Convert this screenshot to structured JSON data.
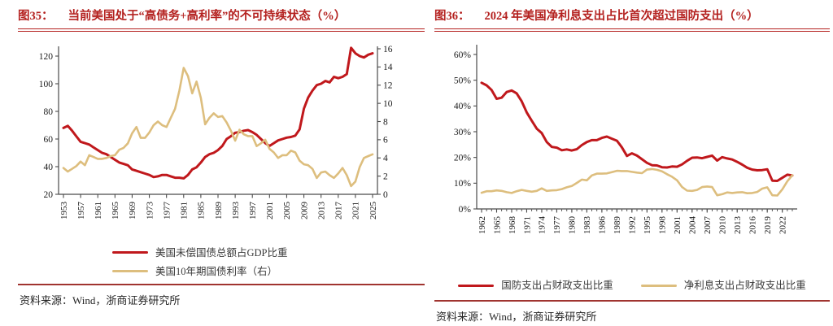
{
  "figures": [
    {
      "title_prefix": "图35：",
      "title": "当前美国处于“高债务+高利率”的不可持续状态（%）",
      "source": "资料来源：Wind，浙商证券研究所",
      "chart_data": {
        "type": "line",
        "x": [
          1953,
          1954,
          1955,
          1956,
          1957,
          1958,
          1959,
          1960,
          1961,
          1962,
          1963,
          1964,
          1965,
          1966,
          1967,
          1968,
          1969,
          1970,
          1971,
          1972,
          1973,
          1974,
          1975,
          1976,
          1977,
          1978,
          1979,
          1980,
          1981,
          1982,
          1983,
          1984,
          1985,
          1986,
          1987,
          1988,
          1989,
          1990,
          1991,
          1992,
          1993,
          1994,
          1995,
          1996,
          1997,
          1998,
          1999,
          2000,
          2001,
          2002,
          2003,
          2004,
          2005,
          2006,
          2007,
          2008,
          2009,
          2010,
          2011,
          2012,
          2013,
          2014,
          2015,
          2016,
          2017,
          2018,
          2019,
          2020,
          2021,
          2022,
          2023,
          2024,
          2025
        ],
        "series": [
          {
            "name": "美国未偿国债总额占GDP比重",
            "axis": "left",
            "color": "#c0181c",
            "values": [
              68,
              69.5,
              66,
              62,
              58,
              57,
              56,
              54,
              52,
              50,
              49,
              47,
              45,
              43,
              42,
              41,
              38,
              37,
              36,
              35,
              34,
              32.5,
              33,
              34,
              34,
              33,
              32,
              32,
              31.5,
              34,
              38,
              39.5,
              43,
              47,
              49,
              50,
              52,
              55,
              60,
              62,
              64.5,
              65,
              66,
              66.5,
              65,
              63,
              60,
              57,
              55,
              57,
              59,
              60,
              61,
              61.5,
              62.5,
              67,
              82,
              90,
              95,
              99,
              100,
              102,
              101,
              105,
              104,
              105,
              107,
              126,
              122,
              120,
              119,
              121,
              122
            ]
          },
          {
            "name": "美国10年期国债利率（右）",
            "axis": "right",
            "color": "#ddbe7e",
            "values": [
              2.9,
              2.5,
              2.8,
              3.1,
              3.6,
              3.2,
              4.3,
              4.1,
              3.9,
              3.9,
              4.0,
              4.2,
              4.3,
              4.9,
              5.1,
              5.6,
              6.7,
              7.4,
              6.2,
              6.2,
              6.8,
              7.6,
              8.0,
              7.6,
              7.4,
              8.4,
              9.4,
              11.4,
              13.9,
              13.0,
              11.1,
              12.4,
              10.6,
              7.7,
              8.4,
              8.9,
              8.5,
              8.6,
              7.9,
              7.0,
              5.9,
              7.1,
              6.6,
              6.4,
              6.4,
              5.3,
              5.6,
              6.0,
              5.0,
              4.6,
              4.0,
              4.3,
              4.3,
              4.8,
              4.6,
              3.7,
              3.3,
              3.2,
              2.8,
              1.8,
              2.4,
              2.5,
              2.1,
              1.8,
              2.3,
              2.9,
              2.1,
              0.9,
              1.4,
              3.0,
              4.0,
              4.2,
              4.4
            ]
          }
        ],
        "left_axis": {
          "min": 20,
          "max": 120,
          "ticks": [
            20,
            40,
            60,
            80,
            100,
            120
          ],
          "tick_labels": [
            "20",
            "40",
            "60",
            "80",
            "100",
            "120"
          ]
        },
        "right_axis": {
          "min": 0,
          "max": 16,
          "ticks": [
            0,
            2,
            4,
            6,
            8,
            10,
            12,
            14,
            16
          ],
          "tick_labels": [
            "0",
            "2",
            "4",
            "6",
            "8",
            "10",
            "12",
            "14",
            "16"
          ]
        },
        "x_ticks": [
          1953,
          1957,
          1961,
          1965,
          1969,
          1973,
          1977,
          1981,
          1985,
          1989,
          1993,
          1997,
          2001,
          2005,
          2009,
          2013,
          2017,
          2021,
          2025
        ],
        "x_tick_labels": [
          "1953",
          "1957",
          "1961",
          "1965",
          "1969",
          "1973",
          "1977",
          "1981",
          "1985",
          "1989",
          "1993",
          "1997",
          "2001",
          "2005",
          "2009",
          "2013",
          "2017",
          "2021",
          "2025"
        ],
        "grid": false,
        "legend_position": "bottom"
      }
    },
    {
      "title_prefix": "图36：",
      "title": "2024 年美国净利息支出占比首次超过国防支出（%）",
      "source": "资料来源：Wind，浙商证券研究所",
      "chart_data": {
        "type": "line",
        "x": [
          1962,
          1963,
          1964,
          1965,
          1966,
          1967,
          1968,
          1969,
          1970,
          1971,
          1972,
          1973,
          1974,
          1975,
          1976,
          1977,
          1978,
          1979,
          1980,
          1981,
          1982,
          1983,
          1984,
          1985,
          1986,
          1987,
          1988,
          1989,
          1990,
          1991,
          1992,
          1993,
          1994,
          1995,
          1996,
          1997,
          1998,
          1999,
          2000,
          2001,
          2002,
          2003,
          2004,
          2005,
          2006,
          2007,
          2008,
          2009,
          2010,
          2011,
          2012,
          2013,
          2014,
          2015,
          2016,
          2017,
          2018,
          2019,
          2020,
          2021,
          2022,
          2023,
          2024
        ],
        "series": [
          {
            "name": "国防支出占财政支出比重",
            "axis": "left",
            "color": "#c0181c",
            "values": [
              49,
              48,
              46.2,
              42.8,
              43.2,
              45.4,
              46,
              44.9,
              41.8,
              37.5,
              34.3,
              31.2,
              29.5,
              26,
              24.1,
              23.8,
              22.8,
              23.1,
              22.7,
              23.2,
              24.8,
              26,
              26.7,
              26.7,
              27.6,
              28.1,
              27.3,
              26.5,
              23.9,
              20.6,
              21.6,
              20.7,
              19.3,
              17.9,
              17,
              16.9,
              16.2,
              16.1,
              16.5,
              16.4,
              17.3,
              18.7,
              19.9,
              20,
              19.7,
              20.2,
              20.7,
              18.8,
              20.1,
              19.6,
              19.2,
              18.3,
              17.2,
              16,
              15.3,
              15,
              15.1,
              15.4,
              11,
              10.9,
              12.1,
              13.3,
              13
            ]
          },
          {
            "name": "净利息支出占财政支出比重",
            "axis": "left",
            "color": "#ddbe7e",
            "values": [
              6.3,
              6.9,
              6.9,
              7.2,
              7,
              6.5,
              6.2,
              6.9,
              7.4,
              7,
              6.7,
              7,
              8,
              7,
              7.2,
              7.3,
              7.7,
              8.4,
              8.9,
              10.1,
              11.4,
              11.1,
              13,
              13.7,
              13.7,
              13.8,
              14.3,
              14.8,
              14.7,
              14.7,
              14.4,
              14.1,
              13.9,
              15.3,
              15.5,
              15.2,
              14.6,
              13.5,
              12.5,
              11.1,
              8.5,
              7.1,
              7,
              7.4,
              8.5,
              8.7,
              8.5,
              5.3,
              5.7,
              6.4,
              6.2,
              6.4,
              6.5,
              6.1,
              6.2,
              6.6,
              7.9,
              8.4,
              5.3,
              5.2,
              7.6,
              10.7,
              13.1
            ]
          }
        ],
        "left_axis": {
          "min": 0,
          "max": 60,
          "ticks": [
            0,
            10,
            20,
            30,
            40,
            50,
            60
          ],
          "tick_labels": [
            "0%",
            "10%",
            "20%",
            "30%",
            "40%",
            "50%",
            "60%"
          ]
        },
        "x_ticks": [
          1962,
          1965,
          1968,
          1971,
          1974,
          1977,
          1980,
          1983,
          1986,
          1989,
          1992,
          1995,
          1998,
          2001,
          2004,
          2007,
          2010,
          2013,
          2016,
          2019,
          2022
        ],
        "x_tick_labels": [
          "1962",
          "1965",
          "1968",
          "1971",
          "1974",
          "1977",
          "1980",
          "1983",
          "1986",
          "1989",
          "1992",
          "1995",
          "1998",
          "2001",
          "2004",
          "2007",
          "2010",
          "2013",
          "2016",
          "2019",
          "2022"
        ],
        "grid": false,
        "legend_position": "bottom"
      }
    }
  ],
  "colors": {
    "title_red": "#b4211f",
    "series_red": "#c0181c",
    "series_tan": "#ddbe7e",
    "source_rule": "#a03430"
  }
}
